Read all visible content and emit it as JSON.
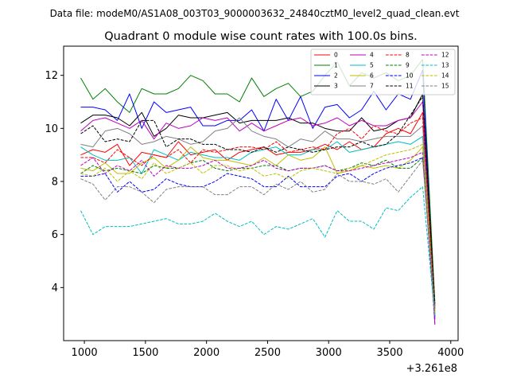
{
  "figure": {
    "suptitle": "Data file: modeM0/AS1A08_003T03_9000003632_24840cztM0_level2_quad_clean.evt",
    "title": "Quadrant 0 module wise count rates with 100.0s bins."
  },
  "chart_data": {
    "type": "line",
    "title": "Quadrant 0 module wise count rates with 100.0s bins.",
    "xlabel": "",
    "ylabel": "",
    "x_offset_label": "+3.261e8",
    "xlim": [
      830,
      4060
    ],
    "ylim": [
      2.0,
      13.1
    ],
    "xticks": [
      1000,
      1500,
      2000,
      2500,
      3000,
      3500,
      4000
    ],
    "yticks": [
      4,
      6,
      8,
      10,
      12
    ],
    "grid": false,
    "legend_position": "top-right",
    "x": [
      970,
      1070,
      1170,
      1270,
      1370,
      1470,
      1570,
      1670,
      1770,
      1870,
      1970,
      2070,
      2170,
      2270,
      2370,
      2470,
      2570,
      2670,
      2770,
      2870,
      2970,
      3070,
      3170,
      3270,
      3370,
      3470,
      3570,
      3670,
      3770,
      3870
    ],
    "series": [
      {
        "name": "0",
        "color": "#ff0000",
        "dash": false,
        "values": [
          9.0,
          9.2,
          9.1,
          9.4,
          8.6,
          9.1,
          9.0,
          8.9,
          9.5,
          9.0,
          9.1,
          9.2,
          8.8,
          9.1,
          9.2,
          9.3,
          9.0,
          9.1,
          9.1,
          9.2,
          9.4,
          9.2,
          9.5,
          9.2,
          9.3,
          9.8,
          10.0,
          9.8,
          10.6,
          3.0
        ]
      },
      {
        "name": "1",
        "color": "#008000",
        "dash": false,
        "values": [
          11.9,
          11.1,
          11.5,
          11.0,
          10.6,
          11.5,
          11.3,
          11.3,
          11.5,
          12.0,
          11.8,
          11.3,
          11.3,
          11.0,
          11.9,
          11.2,
          11.5,
          11.7,
          11.2,
          11.4,
          12.0,
          12.5,
          11.6,
          12.1,
          11.9,
          12.1,
          11.8,
          12.0,
          12.6,
          3.4
        ]
      },
      {
        "name": "2",
        "color": "#0000ff",
        "dash": false,
        "values": [
          10.8,
          10.8,
          10.7,
          10.3,
          11.3,
          10.0,
          11.0,
          10.6,
          10.7,
          10.8,
          10.1,
          10.1,
          10.3,
          10.3,
          10.7,
          9.9,
          11.1,
          10.3,
          11.2,
          10.0,
          10.8,
          10.9,
          10.4,
          10.7,
          11.4,
          10.7,
          11.3,
          11.1,
          12.2,
          2.8
        ]
      },
      {
        "name": "3",
        "color": "#000000",
        "dash": false,
        "values": [
          10.2,
          10.5,
          10.5,
          10.4,
          10.1,
          10.6,
          9.7,
          10.0,
          10.5,
          10.4,
          10.4,
          10.5,
          10.6,
          10.2,
          10.3,
          10.3,
          10.3,
          10.4,
          10.2,
          10.2,
          10.0,
          9.9,
          9.9,
          10.4,
          9.9,
          10.0,
          10.3,
          10.4,
          11.3,
          3.3
        ]
      },
      {
        "name": "4",
        "color": "#bf00bf",
        "dash": false,
        "values": [
          9.9,
          10.3,
          10.4,
          10.2,
          10.0,
          10.3,
          9.6,
          10.2,
          10.0,
          10.1,
          10.4,
          10.3,
          10.4,
          9.9,
          10.2,
          9.9,
          10.1,
          10.3,
          10.4,
          10.1,
          10.2,
          10.4,
          10.1,
          10.3,
          10.1,
          10.1,
          10.3,
          10.4,
          11.0,
          2.6
        ]
      },
      {
        "name": "5",
        "color": "#00bfbf",
        "dash": false,
        "values": [
          9.3,
          9.0,
          8.8,
          8.8,
          8.9,
          8.3,
          9.2,
          9.0,
          8.8,
          9.1,
          9.0,
          8.9,
          8.9,
          8.8,
          9.1,
          9.2,
          9.3,
          9.0,
          9.0,
          9.2,
          9.2,
          9.5,
          9.1,
          9.2,
          9.3,
          9.4,
          9.5,
          9.4,
          9.7,
          2.9
        ]
      },
      {
        "name": "6",
        "color": "#bfbf00",
        "dash": false,
        "values": [
          8.5,
          8.4,
          8.7,
          8.3,
          8.3,
          8.7,
          8.9,
          8.5,
          8.8,
          9.3,
          8.9,
          8.8,
          8.8,
          8.7,
          8.6,
          8.9,
          8.6,
          9.0,
          8.8,
          8.9,
          9.3,
          8.3,
          8.4,
          8.6,
          8.5,
          8.6,
          8.5,
          8.8,
          9.3,
          3.1
        ]
      },
      {
        "name": "7",
        "color": "#808080",
        "dash": false,
        "values": [
          9.4,
          9.3,
          9.9,
          10.0,
          9.8,
          9.4,
          9.5,
          9.7,
          9.6,
          9.4,
          9.5,
          9.9,
          10.0,
          10.4,
          9.9,
          9.7,
          9.6,
          9.3,
          9.6,
          9.5,
          9.9,
          9.6,
          9.6,
          9.5,
          9.6,
          9.7,
          9.7,
          9.7,
          10.1,
          3.2
        ]
      },
      {
        "name": "8",
        "color": "#ff0000",
        "dash": true,
        "values": [
          8.9,
          8.9,
          8.7,
          9.2,
          8.9,
          8.6,
          9.0,
          8.9,
          9.2,
          8.7,
          9.2,
          9.1,
          9.2,
          9.3,
          9.3,
          9.2,
          9.5,
          9.1,
          9.2,
          9.3,
          9.2,
          9.8,
          10.0,
          9.6,
          10.1,
          9.9,
          9.8,
          10.2,
          10.4,
          3.2
        ]
      },
      {
        "name": "9",
        "color": "#008000",
        "dash": true,
        "values": [
          8.3,
          8.6,
          8.4,
          8.5,
          8.4,
          8.3,
          8.6,
          8.5,
          8.5,
          8.7,
          8.8,
          8.5,
          8.4,
          8.5,
          8.5,
          8.6,
          8.6,
          8.4,
          8.5,
          8.5,
          8.6,
          8.4,
          8.5,
          8.7,
          8.6,
          8.8,
          8.5,
          8.5,
          8.9,
          3.0
        ]
      },
      {
        "name": "10",
        "color": "#0000ff",
        "dash": true,
        "values": [
          8.2,
          8.2,
          8.3,
          7.6,
          8.0,
          7.6,
          7.7,
          8.1,
          7.9,
          7.8,
          7.8,
          8.0,
          8.3,
          8.2,
          8.1,
          7.8,
          7.8,
          8.2,
          7.8,
          7.8,
          7.8,
          8.2,
          8.3,
          8.0,
          8.3,
          8.5,
          8.6,
          8.7,
          8.9,
          2.9
        ]
      },
      {
        "name": "11",
        "color": "#000000",
        "dash": true,
        "values": [
          9.8,
          10.1,
          9.5,
          9.6,
          9.5,
          10.3,
          10.3,
          9.3,
          9.6,
          9.6,
          9.4,
          9.4,
          9.2,
          9.2,
          9.1,
          9.3,
          9.1,
          9.3,
          9.2,
          9.1,
          9.2,
          9.3,
          9.3,
          9.5,
          9.3,
          9.4,
          9.8,
          10.5,
          11.2,
          3.4
        ]
      },
      {
        "name": "12",
        "color": "#bf00bf",
        "dash": true,
        "values": [
          8.6,
          8.9,
          8.3,
          8.6,
          8.4,
          8.8,
          8.2,
          8.6,
          8.5,
          8.5,
          8.6,
          8.8,
          8.5,
          8.5,
          8.6,
          8.8,
          8.5,
          8.4,
          8.5,
          8.5,
          8.6,
          8.4,
          8.4,
          8.5,
          8.6,
          8.7,
          8.8,
          8.9,
          9.1,
          2.6
        ]
      },
      {
        "name": "13",
        "color": "#00bfbf",
        "dash": true,
        "values": [
          6.9,
          6.0,
          6.3,
          6.3,
          6.3,
          6.4,
          6.5,
          6.6,
          6.4,
          6.4,
          6.5,
          6.8,
          6.5,
          6.3,
          6.5,
          6.0,
          6.3,
          6.2,
          6.4,
          6.6,
          5.9,
          6.9,
          6.5,
          6.5,
          6.2,
          7.0,
          6.9,
          7.4,
          7.8,
          2.9
        ]
      },
      {
        "name": "14",
        "color": "#bfbf00",
        "dash": true,
        "values": [
          8.3,
          8.2,
          8.5,
          8.0,
          8.4,
          8.1,
          8.7,
          8.3,
          8.5,
          8.7,
          8.3,
          8.6,
          8.6,
          8.4,
          8.5,
          8.2,
          8.3,
          8.1,
          8.4,
          8.5,
          8.4,
          8.3,
          8.5,
          8.6,
          8.8,
          9.0,
          9.1,
          9.2,
          9.4,
          3.0
        ]
      },
      {
        "name": "15",
        "color": "#808080",
        "dash": true,
        "values": [
          8.1,
          7.9,
          7.3,
          7.8,
          7.8,
          7.6,
          7.2,
          7.7,
          7.8,
          7.8,
          7.8,
          7.5,
          7.5,
          7.8,
          7.8,
          7.5,
          7.9,
          7.7,
          8.0,
          7.6,
          7.7,
          8.3,
          8.0,
          8.0,
          7.9,
          8.1,
          7.6,
          8.2,
          8.8,
          3.1
        ]
      }
    ]
  }
}
